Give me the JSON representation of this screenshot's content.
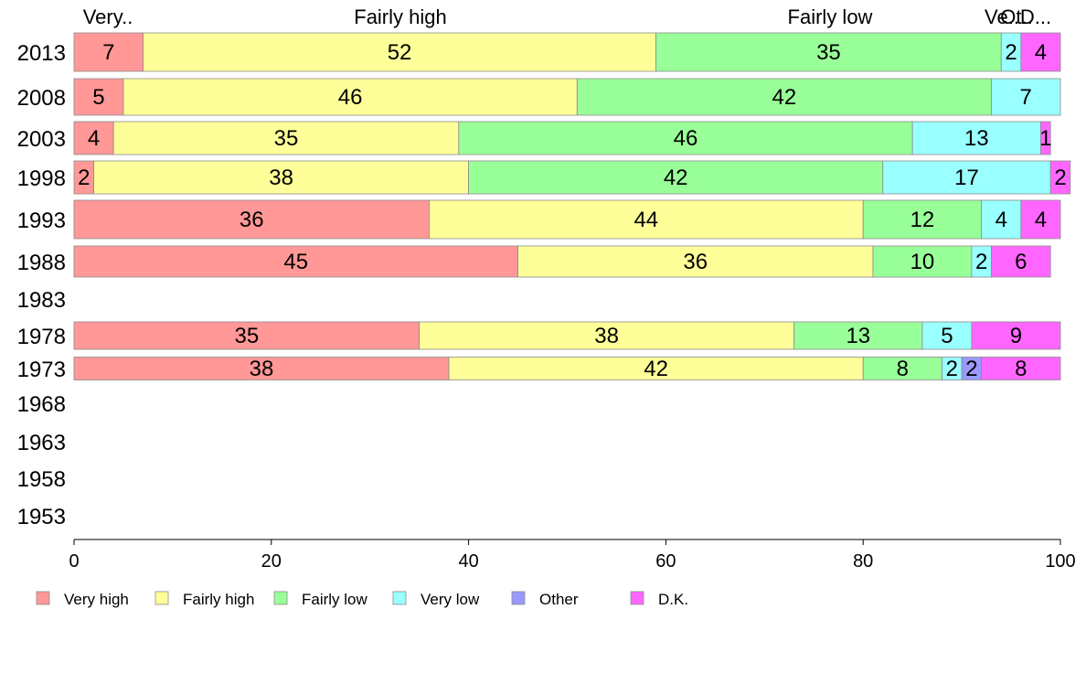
{
  "chart_data": {
    "type": "bar",
    "orientation": "horizontal-stacked",
    "categories": [
      "2013",
      "2008",
      "2003",
      "1998",
      "1993",
      "1988",
      "1983",
      "1978",
      "1973",
      "1968",
      "1963",
      "1958",
      "1953"
    ],
    "series": [
      {
        "name": "Very high",
        "color": "#ff9896",
        "values": [
          7,
          5,
          4,
          2,
          36,
          45,
          null,
          35,
          38,
          null,
          null,
          null,
          null
        ]
      },
      {
        "name": "Fairly high",
        "color": "#ffff99",
        "values": [
          52,
          46,
          35,
          38,
          44,
          36,
          null,
          38,
          42,
          null,
          null,
          null,
          null
        ]
      },
      {
        "name": "Fairly low",
        "color": "#99ff99",
        "values": [
          35,
          42,
          46,
          42,
          12,
          10,
          null,
          13,
          8,
          null,
          null,
          null,
          null
        ]
      },
      {
        "name": "Very low",
        "color": "#99ffff",
        "values": [
          2,
          7,
          13,
          17,
          4,
          2,
          null,
          5,
          2,
          null,
          null,
          null,
          null
        ]
      },
      {
        "name": "Other",
        "color": "#9999ff",
        "values": [
          0,
          0,
          0,
          0,
          0,
          0,
          null,
          0,
          2,
          null,
          null,
          null,
          null
        ]
      },
      {
        "name": "D.K.",
        "color": "#ff66ff",
        "values": [
          4,
          0,
          1,
          2,
          4,
          6,
          null,
          9,
          8,
          null,
          null,
          null,
          null
        ]
      }
    ],
    "top_labels": [
      "Very..",
      "Fairly high",
      "Fairly low",
      "Ve..",
      "Ot..",
      "D..."
    ],
    "x_ticks": [
      0,
      20,
      40,
      60,
      80,
      100
    ],
    "xlim": [
      0,
      100
    ],
    "grid": false,
    "legend_position": "bottom-left"
  }
}
